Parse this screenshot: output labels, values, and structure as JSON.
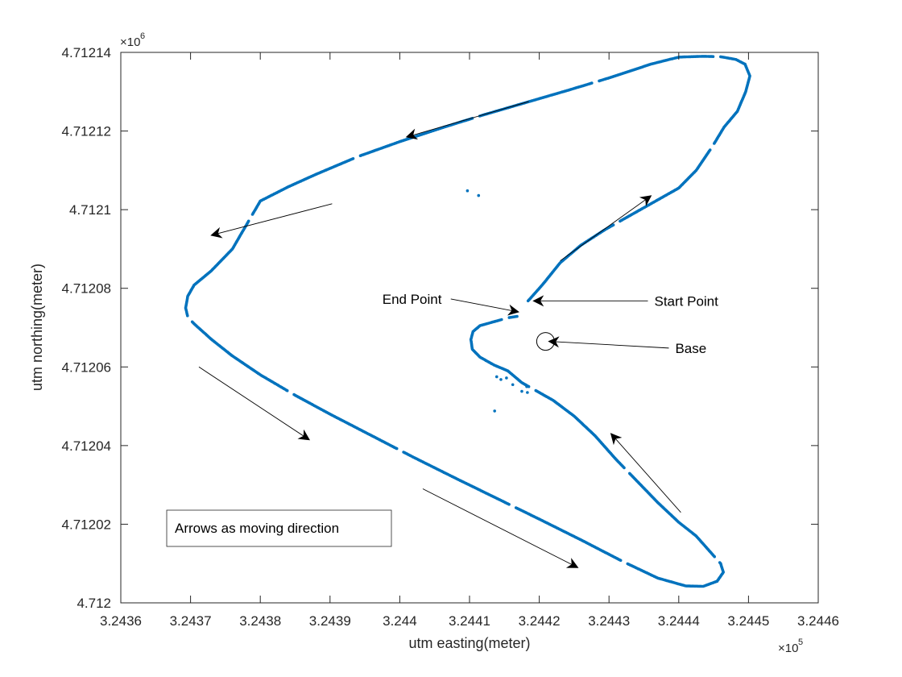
{
  "chart_data": {
    "type": "scatter",
    "xlabel": "utm easting(meter)",
    "ylabel": "utm northing(meter)",
    "x_exponent": {
      "base": "×10",
      "power": "5"
    },
    "y_exponent": {
      "base": "×10",
      "power": "6"
    },
    "xlim": [
      324360,
      324460
    ],
    "ylim": [
      4712000,
      4712140
    ],
    "x_ticks": [
      324360,
      324370,
      324380,
      324390,
      324400,
      324410,
      324420,
      324430,
      324440,
      324450,
      324460
    ],
    "x_tick_labels": [
      "3.2436",
      "3.2437",
      "3.2438",
      "3.2439",
      "3.244",
      "3.2441",
      "3.2442",
      "3.2443",
      "3.2444",
      "3.2445",
      "3.2446"
    ],
    "y_ticks": [
      4712000,
      4712020,
      4712040,
      4712060,
      4712080,
      4712100,
      4712120,
      4712140
    ],
    "y_tick_labels": [
      "4.712",
      "4.71202",
      "4.71204",
      "4.71206",
      "4.71208",
      "4.7121",
      "4.71212",
      "4.71214"
    ],
    "grid": false,
    "series": [
      {
        "color": "#0072BD",
        "path": [
          [
            324418.4,
            4712076.8
          ],
          [
            324420.5,
            4712081.0
          ],
          [
            324423.0,
            4712086.5
          ],
          [
            324426.0,
            4712091.0
          ],
          [
            324429.5,
            4712095.0
          ],
          [
            324433.5,
            4712099.0
          ],
          [
            324437.0,
            4712102.5
          ],
          [
            324440.0,
            4712105.5
          ],
          [
            324442.5,
            4712110.0
          ],
          [
            324444.8,
            4712116.0
          ],
          [
            324446.5,
            4712121.0
          ],
          [
            324448.4,
            4712125.0
          ],
          [
            324449.6,
            4712130.0
          ],
          [
            324450.2,
            4712134.0
          ],
          [
            324449.5,
            4712137.0
          ],
          [
            324448.2,
            4712138.2
          ],
          [
            324446.0,
            4712138.9
          ],
          [
            324443.5,
            4712139.0
          ],
          [
            324440.0,
            4712138.8
          ],
          [
            324436.0,
            4712137.0
          ],
          [
            324430.0,
            4712133.5
          ],
          [
            324424.0,
            4712130.3
          ],
          [
            324418.0,
            4712127.2
          ],
          [
            324412.0,
            4712124.1
          ],
          [
            324406.0,
            4712120.8
          ],
          [
            324400.0,
            4712117.3
          ],
          [
            324394.0,
            4712113.5
          ],
          [
            324388.0,
            4712109.0
          ],
          [
            324384.0,
            4712105.8
          ],
          [
            324380.0,
            4712102.2
          ],
          [
            324376.0,
            4712090.0
          ],
          [
            324373.0,
            4712084.5
          ],
          [
            324370.5,
            4712080.8
          ],
          [
            324369.6,
            4712078.0
          ],
          [
            324369.3,
            4712075.0
          ],
          [
            324369.6,
            4712072.7
          ],
          [
            324370.5,
            4712071.0
          ],
          [
            324373.0,
            4712067.0
          ],
          [
            324376.0,
            4712062.8
          ],
          [
            324380.0,
            4712058.0
          ],
          [
            324385.0,
            4712052.8
          ],
          [
            324390.0,
            4712048.0
          ],
          [
            324396.0,
            4712042.5
          ],
          [
            324402.0,
            4712037.0
          ],
          [
            324408.0,
            4712031.7
          ],
          [
            324414.0,
            4712026.5
          ],
          [
            324420.0,
            4712021.3
          ],
          [
            324426.0,
            4712016.0
          ],
          [
            324432.0,
            4712010.5
          ],
          [
            324437.0,
            4712006.3
          ],
          [
            324441.0,
            4712004.3
          ],
          [
            324443.5,
            4712004.2
          ],
          [
            324445.5,
            4712005.5
          ],
          [
            324446.4,
            4712007.8
          ],
          [
            324446.0,
            4712010.0
          ],
          [
            324444.5,
            4712013.0
          ],
          [
            324442.5,
            4712017.0
          ],
          [
            324440.0,
            4712020.5
          ],
          [
            324437.0,
            4712025.5
          ],
          [
            324434.0,
            4712031.0
          ],
          [
            324431.0,
            4712036.5
          ],
          [
            324428.0,
            4712042.5
          ],
          [
            324425.0,
            4712047.5
          ],
          [
            324422.0,
            4712051.5
          ],
          [
            324419.5,
            4712054.0
          ],
          [
            324417.5,
            4712056.0
          ],
          [
            324415.5,
            4712059.0
          ],
          [
            324413.5,
            4712060.5
          ],
          [
            324411.5,
            4712062.5
          ],
          [
            324410.4,
            4712064.5
          ],
          [
            324410.2,
            4712067.0
          ],
          [
            324410.5,
            4712069.0
          ],
          [
            324411.5,
            4712070.5
          ],
          [
            324413.5,
            4712071.5
          ],
          [
            324415.5,
            4712072.5
          ],
          [
            324417.0,
            4712072.9
          ]
        ]
      }
    ],
    "annotations": [
      {
        "text": "End Point",
        "arrow_tip": [
          324417.0,
          4712074.0
        ],
        "label_pos": [
          324397.5,
          4712077.3
        ]
      },
      {
        "text": "Start Point",
        "arrow_tip": [
          324419.2,
          4712076.8
        ],
        "label_pos": [
          324436.5,
          4712076.8
        ]
      },
      {
        "text": "Base",
        "arrow_tip": [
          324421.4,
          4712066.5
        ],
        "label_pos": [
          324439.5,
          4712064.8
        ]
      }
    ],
    "base_marker": [
      324420.9,
      4712066.5
    ],
    "direction_arrows": [
      {
        "from": [
          324418.5,
          4712127.5
        ],
        "to": [
          324401.0,
          4712118.5
        ]
      },
      {
        "from": [
          324390.3,
          4712101.5
        ],
        "to": [
          324373.0,
          4712093.5
        ]
      },
      {
        "from": [
          324371.2,
          4712060.0
        ],
        "to": [
          324387.0,
          4712041.5
        ]
      },
      {
        "from": [
          324403.3,
          4712029.0
        ],
        "to": [
          324425.5,
          4712009.0
        ]
      },
      {
        "from": [
          324440.3,
          4712023.0
        ],
        "to": [
          324430.3,
          4712043.0
        ]
      },
      {
        "from": [
          324423.0,
          4712087.0
        ],
        "to": [
          324436.0,
          4712103.5
        ]
      }
    ],
    "legend_note": "Arrows as moving direction"
  }
}
